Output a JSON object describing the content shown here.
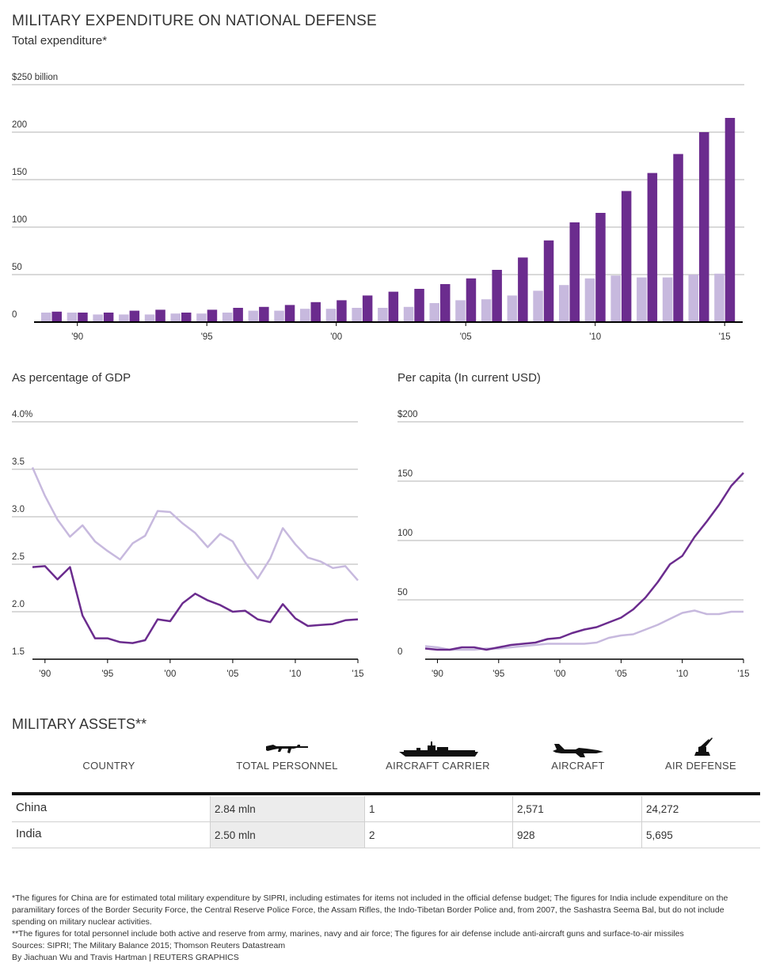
{
  "title": "MILITARY EXPENDITURE ON NATIONAL DEFENSE",
  "colors": {
    "china": "#6b2c8e",
    "india": "#c7b9de",
    "grid": "#9a9a9a",
    "axis": "#000000"
  },
  "chart_data": [
    {
      "type": "bar",
      "title": "Total expenditure*",
      "top_tick_label": "$250 billion",
      "yticks": [
        0,
        50,
        100,
        150,
        200
      ],
      "ylim": [
        0,
        250
      ],
      "xticks": [
        {
          "year": 1990,
          "label": "'90"
        },
        {
          "year": 1995,
          "label": "'95"
        },
        {
          "year": 2000,
          "label": "'00"
        },
        {
          "year": 2005,
          "label": "'05"
        },
        {
          "year": 2010,
          "label": "'10"
        },
        {
          "year": 2015,
          "label": "'15"
        }
      ],
      "categories": [
        1989,
        1990,
        1991,
        1992,
        1993,
        1994,
        1995,
        1996,
        1997,
        1998,
        1999,
        2000,
        2001,
        2002,
        2003,
        2004,
        2005,
        2006,
        2007,
        2008,
        2009,
        2010,
        2011,
        2012,
        2013,
        2014,
        2015
      ],
      "series": [
        {
          "key": "india",
          "values": [
            10,
            10,
            8,
            8,
            8,
            9,
            9,
            10,
            12,
            12,
            14,
            14,
            15,
            15,
            16,
            20,
            23,
            24,
            28,
            33,
            39,
            46,
            49,
            47,
            47,
            50,
            51
          ]
        },
        {
          "key": "china",
          "values": [
            11,
            10,
            10,
            12,
            13,
            10,
            13,
            15,
            16,
            18,
            21,
            23,
            28,
            32,
            35,
            40,
            46,
            55,
            68,
            86,
            105,
            115,
            138,
            157,
            177,
            200,
            215
          ]
        }
      ]
    },
    {
      "type": "line",
      "title": "As percentage of GDP",
      "top_tick_label": "4.0%",
      "yticks": [
        1.5,
        2.0,
        2.5,
        3.0,
        3.5
      ],
      "ylim": [
        1.5,
        4.0
      ],
      "xticks": [
        {
          "year": 1990,
          "label": "'90"
        },
        {
          "year": 1995,
          "label": "'95"
        },
        {
          "year": 2000,
          "label": "'00"
        },
        {
          "year": 2005,
          "label": "'05"
        },
        {
          "year": 2010,
          "label": "'10"
        },
        {
          "year": 2015,
          "label": "'15"
        }
      ],
      "x": [
        1989,
        1990,
        1991,
        1992,
        1993,
        1994,
        1995,
        1996,
        1997,
        1998,
        1999,
        2000,
        2001,
        2002,
        2003,
        2004,
        2005,
        2006,
        2007,
        2008,
        2009,
        2010,
        2011,
        2012,
        2013,
        2014,
        2015
      ],
      "series": [
        {
          "key": "india",
          "values": [
            3.52,
            3.22,
            2.97,
            2.79,
            2.91,
            2.74,
            2.64,
            2.55,
            2.72,
            2.8,
            3.06,
            3.05,
            2.93,
            2.83,
            2.68,
            2.82,
            2.74,
            2.52,
            2.35,
            2.56,
            2.88,
            2.71,
            2.57,
            2.53,
            2.46,
            2.48,
            2.33
          ]
        },
        {
          "key": "china",
          "values": [
            2.47,
            2.48,
            2.34,
            2.47,
            1.96,
            1.72,
            1.72,
            1.68,
            1.67,
            1.7,
            1.92,
            1.9,
            2.09,
            2.19,
            2.12,
            2.07,
            2.0,
            2.01,
            1.92,
            1.89,
            2.08,
            1.93,
            1.85,
            1.86,
            1.87,
            1.91,
            1.92
          ]
        }
      ]
    },
    {
      "type": "line",
      "title": "Per capita (In current USD)",
      "top_tick_label": "$200",
      "yticks": [
        0,
        50,
        100,
        150
      ],
      "ylim": [
        0,
        200
      ],
      "xticks": [
        {
          "year": 1990,
          "label": "'90"
        },
        {
          "year": 1995,
          "label": "'95"
        },
        {
          "year": 2000,
          "label": "'00"
        },
        {
          "year": 2005,
          "label": "'05"
        },
        {
          "year": 2010,
          "label": "'10"
        },
        {
          "year": 2015,
          "label": "'15"
        }
      ],
      "x": [
        1989,
        1990,
        1991,
        1992,
        1993,
        1994,
        1995,
        1996,
        1997,
        1998,
        1999,
        2000,
        2001,
        2002,
        2003,
        2004,
        2005,
        2006,
        2007,
        2008,
        2009,
        2010,
        2011,
        2012,
        2013,
        2014,
        2015
      ],
      "series": [
        {
          "key": "india",
          "values": [
            11,
            10,
            8,
            8,
            8,
            9,
            9,
            10,
            11,
            12,
            13,
            13,
            13,
            13,
            14,
            18,
            20,
            21,
            25,
            29,
            34,
            39,
            41,
            38,
            38,
            40,
            40
          ]
        },
        {
          "key": "china",
          "values": [
            9,
            8,
            8,
            10,
            10,
            8,
            10,
            12,
            13,
            14,
            17,
            18,
            22,
            25,
            27,
            31,
            35,
            42,
            52,
            65,
            80,
            87,
            103,
            116,
            130,
            146,
            157
          ]
        }
      ]
    }
  ],
  "assets": {
    "title": "MILITARY ASSETS**",
    "columns": [
      "COUNTRY",
      "TOTAL PERSONNEL",
      "AIRCRAFT CARRIER",
      "AIRCRAFT",
      "AIR DEFENSE"
    ],
    "rows": [
      {
        "country": "China",
        "personnel": "2.84 mln",
        "carrier": "1",
        "aircraft": "2,571",
        "air_defense": "24,272"
      },
      {
        "country": "India",
        "personnel": "2.50 mln",
        "carrier": "2",
        "aircraft": "928",
        "air_defense": "5,695"
      }
    ],
    "icons": [
      "rifle-icon",
      "aircraft-carrier-icon",
      "fighter-jet-icon",
      "anti-aircraft-gun-icon"
    ]
  },
  "notes": [
    "*The figures for China are for estimated total military expenditure by SIPRI, including estimates for items not included in the official defense budget; The figures for India include expenditure on the paramilitary forces of the Border Security Force, the Central Reserve Police Force, the Assam Rifles, the Indo-Tibetan Border Police and, from 2007, the Sashastra Seema Bal, but do not include spending on military nuclear activities.",
    "**The figures for total personnel include both active and reserve from army, marines, navy and air force; The figures for air defense include anti-aircraft guns and surface-to-air missiles",
    "Sources: SIPRI; The Military Balance 2015; Thomson Reuters Datastream",
    "By Jiachuan Wu and Travis Hartman | REUTERS GRAPHICS"
  ]
}
